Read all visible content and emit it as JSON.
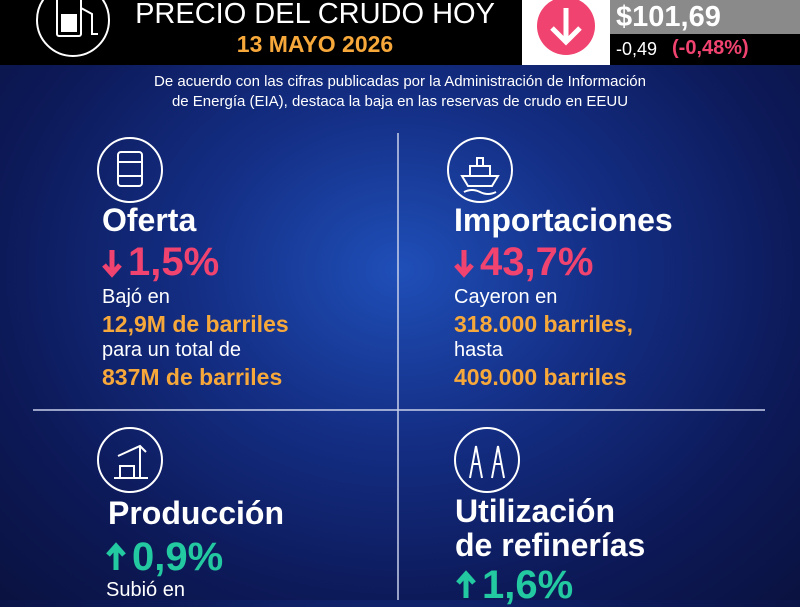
{
  "header": {
    "title": "PRECIO DEL CRUDO HOY",
    "date": "13 MAYO 2026",
    "price": "$101,69",
    "change": "-0,49",
    "change_pct": "(-0,48%)"
  },
  "intro": [
    "De acuerdo con las cifras publicadas por la Administración de Información",
    "de Energía (EIA), destaca la baja en las reservas de crudo en EEUU"
  ],
  "panels": [
    {
      "title": [
        "Oferta"
      ],
      "change": "1,5%",
      "lines": [
        "Bajó en",
        "12,9M de barriles",
        "para un total de",
        "837M de barriles"
      ]
    },
    {
      "title": [
        "Importaciones"
      ],
      "change": "43,7%",
      "lines": [
        "Cayeron en",
        "318.000 barriles,",
        "hasta",
        "409.000 barriles"
      ]
    },
    {
      "title": [
        "Producción"
      ],
      "change": "0,9%",
      "lines": [
        "Subió en"
      ]
    },
    {
      "title": [
        "Utilización",
        "de refinerías"
      ],
      "change": "1,6%",
      "lines": []
    }
  ]
}
